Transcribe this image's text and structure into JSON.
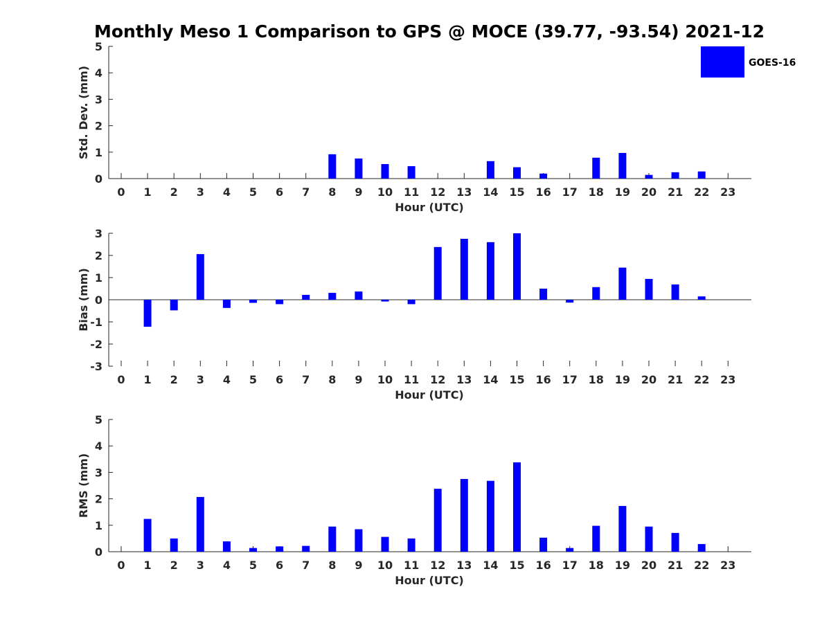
{
  "chart_data": {
    "type": "bar",
    "title": "Monthly Meso 1 Comparison to GPS @ MOCE (39.77, -93.54) 2021-12",
    "legend": {
      "label": "GOES-16",
      "color": "#0000ff",
      "placement": "top-right"
    },
    "panels": [
      {
        "name": "std-dev",
        "ylabel": "Std. Dev. (mm)",
        "xlabel": "Hour (UTC)",
        "ylim": [
          0,
          5
        ],
        "yticks": [
          0,
          1,
          2,
          3,
          4,
          5
        ],
        "categories": [
          0,
          1,
          2,
          3,
          4,
          5,
          6,
          7,
          8,
          9,
          10,
          11,
          12,
          13,
          14,
          15,
          16,
          17,
          18,
          19,
          20,
          21,
          22,
          23
        ],
        "values": [
          null,
          null,
          null,
          null,
          null,
          null,
          null,
          null,
          0.92,
          0.76,
          0.55,
          0.47,
          null,
          null,
          0.66,
          0.43,
          0.19,
          null,
          0.79,
          0.97,
          0.14,
          0.24,
          0.27,
          null
        ]
      },
      {
        "name": "bias",
        "ylabel": "Bias (mm)",
        "xlabel": "Hour (UTC)",
        "ylim": [
          -3,
          3
        ],
        "yticks": [
          -3,
          -2,
          -1,
          0,
          1,
          2,
          3
        ],
        "categories": [
          0,
          1,
          2,
          3,
          4,
          5,
          6,
          7,
          8,
          9,
          10,
          11,
          12,
          13,
          14,
          15,
          16,
          17,
          18,
          19,
          20,
          21,
          22,
          23
        ],
        "values": [
          null,
          -1.22,
          -0.48,
          2.06,
          -0.37,
          -0.14,
          -0.2,
          0.22,
          0.31,
          0.37,
          -0.08,
          -0.2,
          2.38,
          2.75,
          2.6,
          3.0,
          0.5,
          -0.13,
          0.57,
          1.45,
          0.94,
          0.69,
          0.15,
          null
        ]
      },
      {
        "name": "rms",
        "ylabel": "RMS (mm)",
        "xlabel": "Hour (UTC)",
        "ylim": [
          0,
          5
        ],
        "yticks": [
          0,
          1,
          2,
          3,
          4,
          5
        ],
        "categories": [
          0,
          1,
          2,
          3,
          4,
          5,
          6,
          7,
          8,
          9,
          10,
          11,
          12,
          13,
          14,
          15,
          16,
          17,
          18,
          19,
          20,
          21,
          22,
          23
        ],
        "values": [
          null,
          1.24,
          0.5,
          2.07,
          0.39,
          0.14,
          0.2,
          0.22,
          0.95,
          0.85,
          0.56,
          0.5,
          2.38,
          2.75,
          2.68,
          3.38,
          0.53,
          0.14,
          0.98,
          1.73,
          0.95,
          0.71,
          0.29,
          null
        ]
      }
    ]
  }
}
